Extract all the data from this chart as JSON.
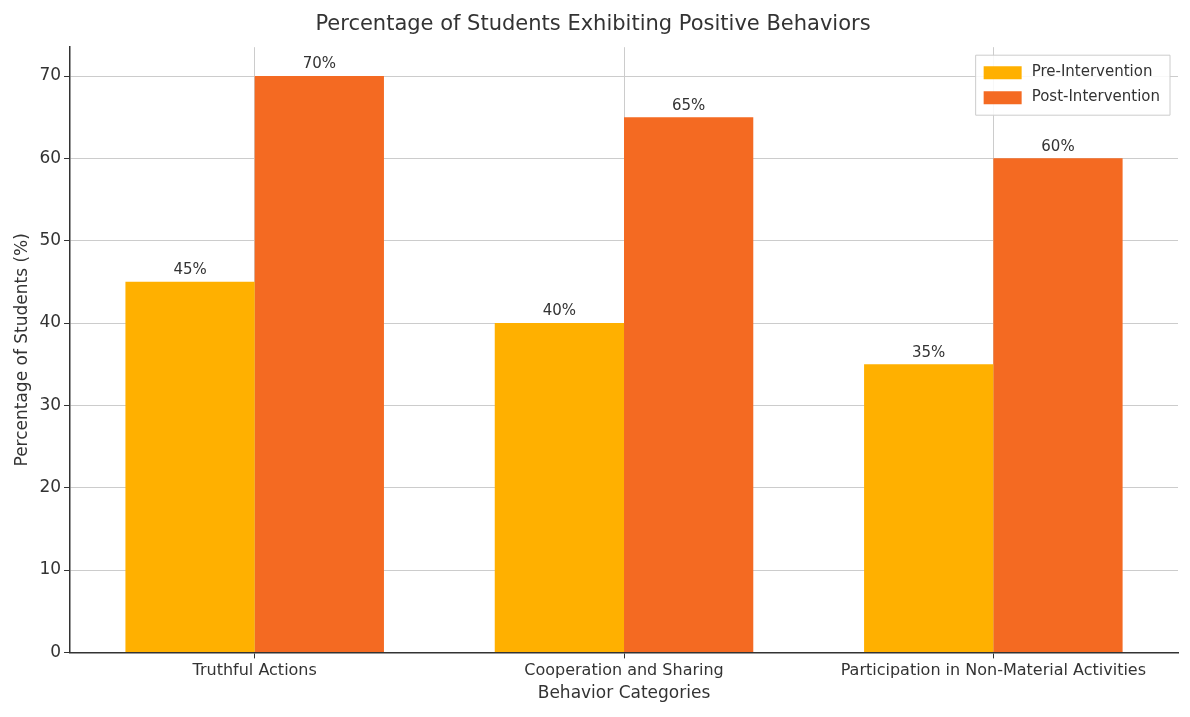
{
  "chart_data": {
    "type": "bar",
    "title": "Percentage of Students Exhibiting Positive Behaviors",
    "xlabel": "Behavior Categories",
    "ylabel": "Percentage of Students (%)",
    "categories": [
      "Truthful Actions",
      "Cooperation and Sharing",
      "Participation in Non-Material Activities"
    ],
    "series": [
      {
        "name": "Pre-Intervention",
        "color": "#ffb000",
        "values": [
          45,
          40,
          35
        ],
        "value_labels": [
          "45%",
          "40%",
          "35%"
        ]
      },
      {
        "name": "Post-Intervention",
        "color": "#f46a22",
        "values": [
          70,
          65,
          60
        ],
        "value_labels": [
          "70%",
          "65%",
          "60%"
        ]
      }
    ],
    "ylim": [
      0,
      73.5
    ],
    "yticks": [
      0,
      10,
      20,
      30,
      40,
      50,
      60,
      70
    ],
    "grid": true,
    "legend": "top right"
  }
}
